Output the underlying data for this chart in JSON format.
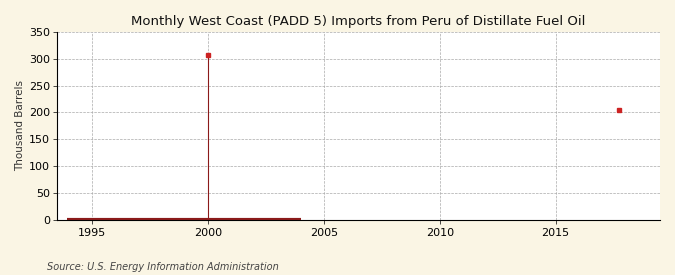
{
  "title": "Monthly West Coast (PADD 5) Imports from Peru of Distillate Fuel Oil",
  "ylabel": "Thousand Barrels",
  "source_text": "Source: U.S. Energy Information Administration",
  "xlim": [
    1993.5,
    2019.5
  ],
  "ylim": [
    0,
    350
  ],
  "yticks": [
    0,
    50,
    100,
    150,
    200,
    250,
    300,
    350
  ],
  "xticks": [
    1995,
    2000,
    2005,
    2010,
    2015
  ],
  "background_color": "#faf5e4",
  "plot_bg_color": "#ffffff",
  "grid_color": "#aaaaaa",
  "line_color": "#8b1a1a",
  "marker_color": "#cc2222",
  "line_width": 3.0,
  "spike_x": 2000.0,
  "spike_y": 307,
  "dot_x": 2017.75,
  "dot_y": 204,
  "bar_x_start": 1993.9,
  "bar_x_end": 2004.0
}
